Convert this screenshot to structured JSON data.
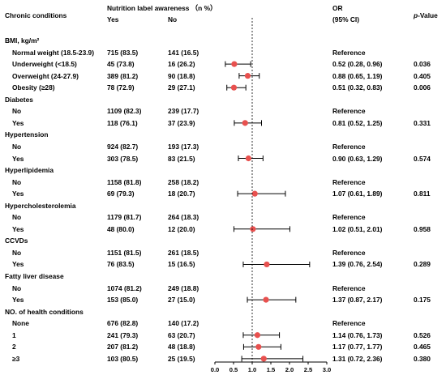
{
  "header": {
    "col_conditions": "Chronic conditions",
    "col_awareness": "Nutrition label awareness （n %）",
    "col_yes": "Yes",
    "col_no": "No",
    "col_or": "OR",
    "col_ci": "(95% CI)",
    "col_p_italic": "p",
    "col_p_rest": "-Value"
  },
  "chart_data": {
    "type": "forest",
    "xlabel": "",
    "xlim": [
      0,
      3.0
    ],
    "x_ticks": [
      "0.0",
      "0.5",
      "1.0",
      "1.5",
      "2.0",
      "2.5",
      "3.0"
    ],
    "reference_line": 1.0,
    "marker_color": "#e8514f",
    "rows": [
      {
        "kind": "group",
        "label": "BMI, kg/m²"
      },
      {
        "kind": "item",
        "label": "Normal weight (18.5-23.9)",
        "yes": "715 (83.5)",
        "no": "141 (16.5)",
        "or_text": "Reference",
        "p": ""
      },
      {
        "kind": "item",
        "label": "Underweight (<18.5)",
        "yes": "45 (73.8)",
        "no": "16 (26.2)",
        "or_text": "0.52 (0.28, 0.96)",
        "p": "0.036",
        "or": 0.52,
        "lo": 0.28,
        "hi": 0.96
      },
      {
        "kind": "item",
        "label": "Overweight (24-27.9)",
        "yes": "389 (81.2)",
        "no": "90 (18.8)",
        "or_text": "0.88 (0.65, 1.19)",
        "p": "0.405",
        "or": 0.88,
        "lo": 0.65,
        "hi": 1.19
      },
      {
        "kind": "item",
        "label": "Obesity (≥28)",
        "yes": "78 (72.9)",
        "no": "29 (27.1)",
        "or_text": "0.51 (0.32, 0.83)",
        "p": "0.006",
        "or": 0.51,
        "lo": 0.32,
        "hi": 0.83
      },
      {
        "kind": "group",
        "label": "Diabetes"
      },
      {
        "kind": "item",
        "label": "No",
        "yes": "1109 (82.3)",
        "no": "239 (17.7)",
        "or_text": "Reference",
        "p": ""
      },
      {
        "kind": "item",
        "label": "Yes",
        "yes": "118 (76.1)",
        "no": "37 (23.9)",
        "or_text": "0.81 (0.52, 1.25)",
        "p": "0.331",
        "or": 0.81,
        "lo": 0.52,
        "hi": 1.25
      },
      {
        "kind": "group",
        "label": "Hypertension"
      },
      {
        "kind": "item",
        "label": "No",
        "yes": "924 (82.7)",
        "no": "193 (17.3)",
        "or_text": "Reference",
        "p": ""
      },
      {
        "kind": "item",
        "label": "Yes",
        "yes": "303 (78.5)",
        "no": "83 (21.5)",
        "or_text": "0.90 (0.63, 1.29)",
        "p": "0.574",
        "or": 0.9,
        "lo": 0.63,
        "hi": 1.29
      },
      {
        "kind": "group",
        "label": "Hyperlipidemia"
      },
      {
        "kind": "item",
        "label": "No",
        "yes": "1158 (81.8)",
        "no": "258 (18.2)",
        "or_text": "Reference",
        "p": ""
      },
      {
        "kind": "item",
        "label": "Yes",
        "yes": "69 (79.3)",
        "no": "18 (20.7)",
        "or_text": "1.07 (0.61, 1.89)",
        "p": "0.811",
        "or": 1.07,
        "lo": 0.61,
        "hi": 1.89
      },
      {
        "kind": "group",
        "label": "Hypercholesterolemia"
      },
      {
        "kind": "item",
        "label": "No",
        "yes": "1179 (81.7)",
        "no": "264 (18.3)",
        "or_text": "Reference",
        "p": ""
      },
      {
        "kind": "item",
        "label": "Yes",
        "yes": "48 (80.0)",
        "no": "12 (20.0)",
        "or_text": "1.02 (0.51, 2.01)",
        "p": "0.958",
        "or": 1.02,
        "lo": 0.51,
        "hi": 2.01
      },
      {
        "kind": "group",
        "label": "CCVDs"
      },
      {
        "kind": "item",
        "label": "No",
        "yes": "1151 (81.5)",
        "no": "261 (18.5)",
        "or_text": "Reference",
        "p": ""
      },
      {
        "kind": "item",
        "label": "Yes",
        "yes": "76 (83.5)",
        "no": "15 (16.5)",
        "or_text": "1.39 (0.76, 2.54)",
        "p": "0.289",
        "or": 1.39,
        "lo": 0.76,
        "hi": 2.54
      },
      {
        "kind": "group",
        "label": "Fatty liver disease"
      },
      {
        "kind": "item",
        "label": "No",
        "yes": "1074 (81.2)",
        "no": "249 (18.8)",
        "or_text": "Reference",
        "p": ""
      },
      {
        "kind": "item",
        "label": "Yes",
        "yes": "153 (85.0)",
        "no": "27 (15.0)",
        "or_text": "1.37 (0.87, 2.17)",
        "p": "0.175",
        "or": 1.37,
        "lo": 0.87,
        "hi": 2.17
      },
      {
        "kind": "group",
        "label": "NO. of health conditions"
      },
      {
        "kind": "item",
        "label": "None",
        "yes": "676 (82.8)",
        "no": "140 (17.2)",
        "or_text": "Reference",
        "p": ""
      },
      {
        "kind": "item",
        "label": "1",
        "yes": "241 (79.3)",
        "no": "63 (20.7)",
        "or_text": "1.14 (0.76, 1.73)",
        "p": "0.526",
        "or": 1.14,
        "lo": 0.76,
        "hi": 1.73
      },
      {
        "kind": "item",
        "label": "2",
        "yes": "207 (81.2)",
        "no": "48 (18.8)",
        "or_text": "1.17 (0.77, 1.77)",
        "p": "0.465",
        "or": 1.17,
        "lo": 0.77,
        "hi": 1.77
      },
      {
        "kind": "item",
        "label": "≥3",
        "yes": "103 (80.5)",
        "no": "25 (19.5)",
        "or_text": "1.31 (0.72, 2.36)",
        "p": "0.380",
        "or": 1.31,
        "lo": 0.72,
        "hi": 2.36
      }
    ]
  }
}
